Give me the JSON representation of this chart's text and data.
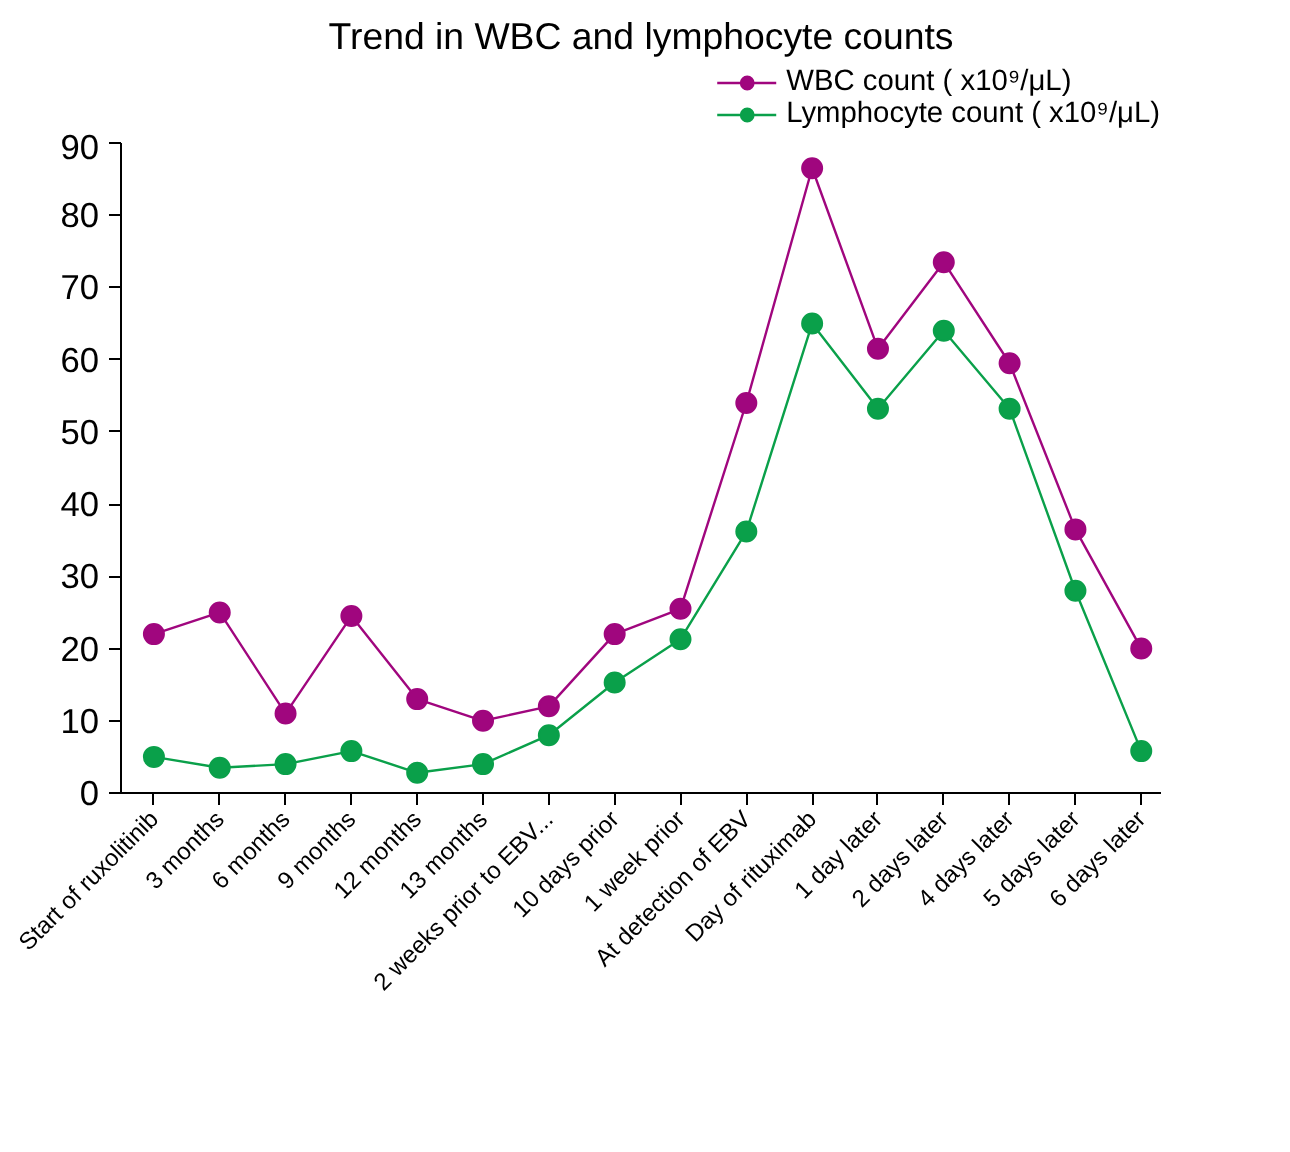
{
  "chart_data": {
    "type": "line",
    "title": "Trend in WBC and lymphocyte counts",
    "categories": [
      "Start of ruxolitinib",
      "3 months",
      "6 months",
      "9 months",
      "12 months",
      "13 months",
      "2 weeks prior to EBV...",
      "10 days prior",
      "1 week prior",
      "At detection of EBV",
      "Day of rituximab",
      "1 day later",
      "2 days later",
      "4 days later",
      "5 days later",
      "6 days later"
    ],
    "series": [
      {
        "name": "WBC count ( x10⁹/μL)",
        "color": "#a0067e",
        "values": [
          22,
          25,
          11,
          24.5,
          13,
          10,
          12,
          22,
          25.5,
          54,
          86.5,
          61.5,
          73.5,
          59.5,
          36.5,
          20
        ]
      },
      {
        "name": "Lymphocyte count ( x10⁹/μL)",
        "color": "#0aa04a",
        "values": [
          5,
          3.5,
          4,
          5.8,
          2.8,
          4,
          8,
          15.3,
          21.3,
          36.2,
          65,
          53.2,
          64,
          53.2,
          28,
          5.8
        ]
      }
    ],
    "ylim": [
      0,
      90
    ],
    "yticks": [
      0,
      10,
      20,
      30,
      40,
      50,
      60,
      70,
      80,
      90
    ],
    "grid": false,
    "legend": "top right",
    "marker": "circle",
    "line_style": "solid"
  }
}
